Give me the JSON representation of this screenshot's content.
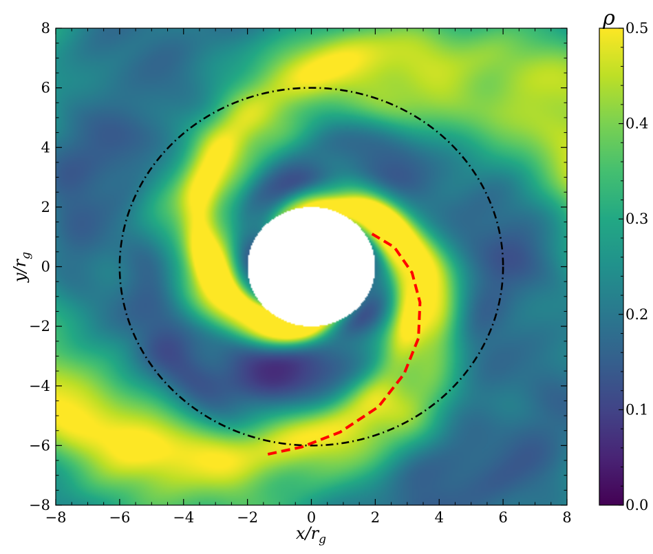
{
  "chart_data": {
    "type": "heatmap",
    "title": "",
    "xlabel": "x/r_g",
    "ylabel": "y/r_g",
    "xlabel_parts": {
      "main": "x/r",
      "sub": "g"
    },
    "ylabel_parts": {
      "main": "y/r",
      "sub": "g"
    },
    "xlim": [
      -8,
      8
    ],
    "ylim": [
      -8,
      8
    ],
    "xticks": [
      -8,
      -6,
      -4,
      -2,
      0,
      2,
      4,
      6,
      8
    ],
    "yticks": [
      -8,
      -6,
      -4,
      -2,
      0,
      2,
      4,
      6,
      8
    ],
    "xtick_labels": [
      "−8",
      "−6",
      "−4",
      "−2",
      "0",
      "2",
      "4",
      "6",
      "8"
    ],
    "ytick_labels": [
      "−8",
      "−6",
      "−4",
      "−2",
      "0",
      "2",
      "4",
      "6",
      "8"
    ],
    "colormap": "viridis",
    "colorbar": {
      "label": "ρ",
      "range": [
        0.0,
        0.5
      ],
      "ticks": [
        0.0,
        0.1,
        0.2,
        0.3,
        0.4,
        0.5
      ],
      "tick_labels": [
        "0.0",
        "0.1",
        "0.2",
        "0.3",
        "0.4",
        "0.5"
      ]
    },
    "excised_region": {
      "shape": "circle",
      "center": [
        0,
        0
      ],
      "radius": 2
    },
    "overlays": [
      {
        "name": "circle",
        "style": "dash-dot",
        "color": "#000000",
        "center": [
          0,
          0
        ],
        "radius": 6
      },
      {
        "name": "spiral-arm",
        "style": "dashed",
        "color": "#ff0000",
        "points": [
          [
            1.9,
            1.1
          ],
          [
            2.6,
            0.65
          ],
          [
            3.15,
            -0.2
          ],
          [
            3.4,
            -1.2
          ],
          [
            3.35,
            -2.4
          ],
          [
            2.9,
            -3.6
          ],
          [
            2.1,
            -4.7
          ],
          [
            0.9,
            -5.55
          ],
          [
            -0.3,
            -6.05
          ],
          [
            -1.4,
            -6.3
          ]
        ]
      }
    ],
    "structure": {
      "description_units": "data",
      "arms": [
        {
          "theta_start": 0.0,
          "theta_end": 1.6,
          "r0": 2.0,
          "growth": 0.33,
          "width": 0.55,
          "value": 0.5
        },
        {
          "theta_start": 3.14,
          "theta_end": 4.7,
          "r0": 2.0,
          "growth": 0.33,
          "width": 0.55,
          "value": 0.5
        }
      ]
    }
  }
}
